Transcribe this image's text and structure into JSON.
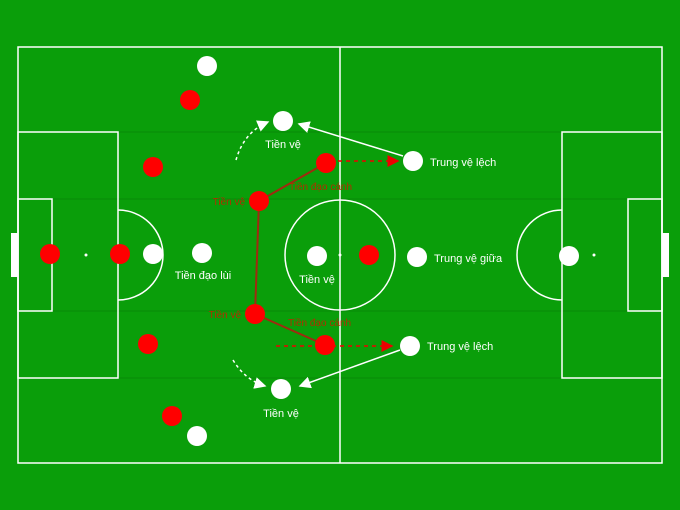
{
  "colors": {
    "pitch": "#0a9e0a",
    "team_red": "#ff0000",
    "team_white": "#ffffff",
    "link": "#a02a10"
  },
  "labels": {
    "mid_top": "Tiền vệ",
    "cb_wide_top": "Trung vệ lệch",
    "forward_deep": "Tiền đạo lùi",
    "mid_center": "Tiền vệ",
    "cb_center": "Trung vệ giữa",
    "cb_wide_bottom": "Trung vệ lệch",
    "mid_bottom": "Tiền vệ",
    "red_mid_top": "Tiền vệ",
    "red_winger_top": "Tiền đạo cánh",
    "red_mid_bottom": "Tiền vệ",
    "red_winger_bottom": "Tiền đạo cánh"
  }
}
